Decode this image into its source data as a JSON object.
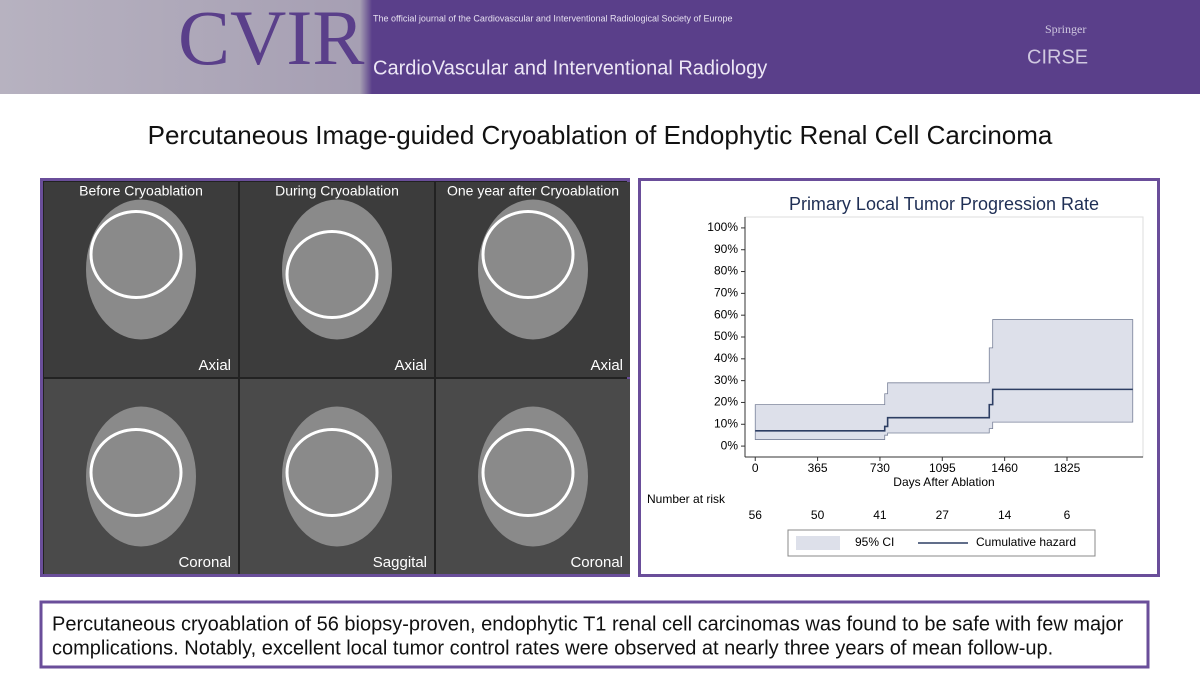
{
  "header": {
    "logo": "CVIR",
    "tagline": "The official journal of the  Cardiovascular and Interventional Radiological Society of Europe",
    "journal": "CardioVascular and Interventional Radiology",
    "publisher": "Springer",
    "society": "CIRSE"
  },
  "title": "Percutaneous Image-guided Cryoablation of Endophytic Renal Cell Carcinoma",
  "images": {
    "columns": [
      "Before Cryoablation",
      "During Cryoablation",
      "One year after Cryoablation"
    ],
    "views": [
      [
        "Axial",
        "Axial",
        "Axial"
      ],
      [
        "Coronal",
        "Saggital",
        "Coronal"
      ]
    ]
  },
  "chart_data": {
    "type": "step",
    "title": "Primary Local Tumor Progression Rate",
    "x_label": "Days After Ablation",
    "x": [
      0,
      758,
      775,
      1370,
      1390,
      2210
    ],
    "band": {
      "name": "95% CI",
      "color": "#dde0ea",
      "lower": [
        3,
        5,
        6,
        8,
        11,
        11
      ],
      "upper": [
        19,
        24,
        29,
        45,
        58,
        58
      ]
    },
    "series": [
      {
        "name": "Cumulative hazard",
        "color": "#2d3e63",
        "values": [
          7,
          9,
          13,
          19,
          26,
          26
        ]
      }
    ],
    "xlim": [
      -60,
      2270
    ],
    "xticks": [
      0,
      365,
      730,
      1095,
      1460,
      1825
    ],
    "ylim": [
      -5,
      105
    ],
    "yticks": [
      {
        "value": 0,
        "label": "0%"
      },
      {
        "value": 10,
        "label": "10%"
      },
      {
        "value": 20,
        "label": "20%"
      },
      {
        "value": 30,
        "label": "30%"
      },
      {
        "value": 40,
        "label": "40%"
      },
      {
        "value": 50,
        "label": "50%"
      },
      {
        "value": 60,
        "label": "60%"
      },
      {
        "value": 70,
        "label": "70%"
      },
      {
        "value": 80,
        "label": "80%"
      },
      {
        "value": 90,
        "label": "90%"
      },
      {
        "value": 100,
        "label": "100%"
      }
    ],
    "risk_table": {
      "label": "Number at risk",
      "values": [
        56,
        50,
        41,
        27,
        14,
        6
      ]
    }
  },
  "summary": [
    "Percutaneous cryoablation of 56 biopsy-proven, endophytic T1 renal cell carcinomas was found to be safe with few major",
    "complications. Notably, excellent local tumor control rates were observed at nearly three years of mean follow-up."
  ]
}
